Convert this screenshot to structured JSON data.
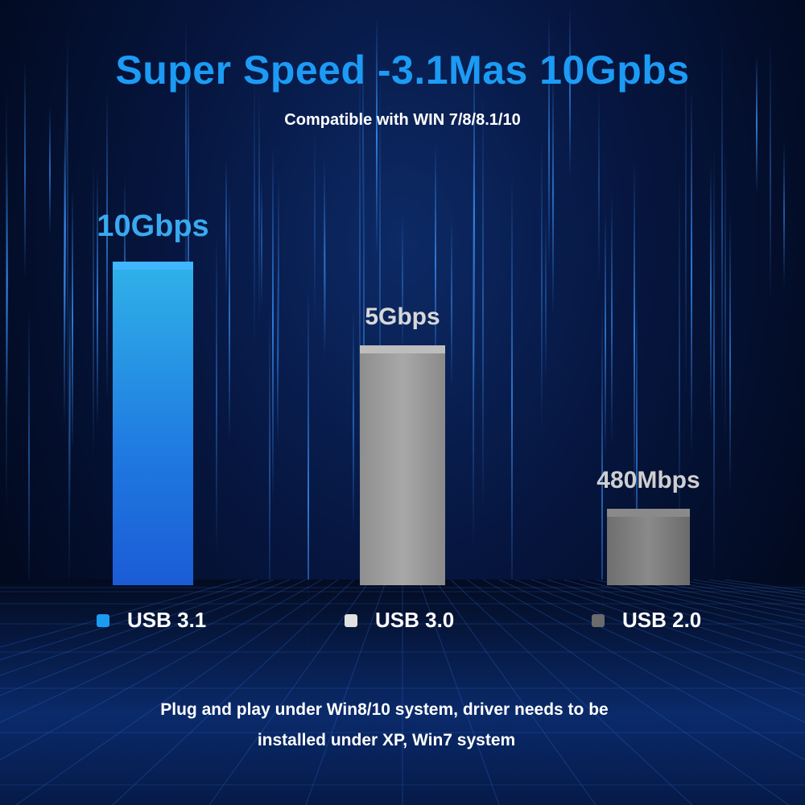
{
  "title": "Super Speed -3.1Mas 10Gpbs",
  "subtitle": "Compatible with WIN 7/8/8.1/10",
  "chart_data": {
    "type": "bar",
    "categories": [
      "USB 3.1",
      "USB 3.0",
      "USB 2.0"
    ],
    "values": [
      10000,
      5000,
      480
    ],
    "unit": "Mbps",
    "data_labels": [
      "10Gbps",
      "5Gbps",
      "480Mbps"
    ],
    "colors": [
      "#1a9cf0",
      "#e0e0e0",
      "#6b6b6b"
    ],
    "legend_placement": "bottom",
    "grid": false
  },
  "footer": {
    "line1": "Plug and play under Win8/10 system, driver needs to be",
    "line2": "installed under XP, Win7 system"
  }
}
